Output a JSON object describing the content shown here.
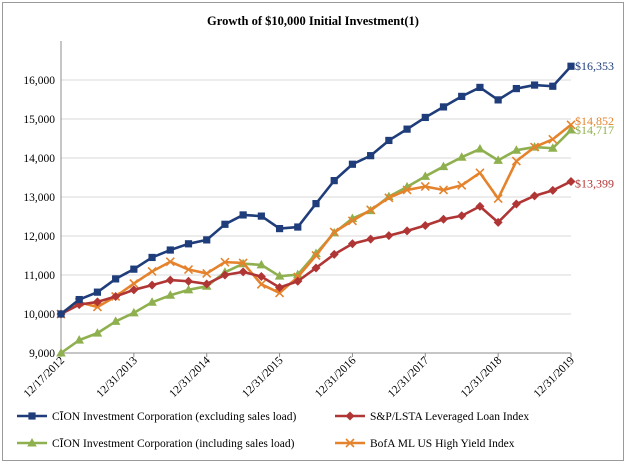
{
  "chart_data": {
    "type": "line",
    "title": "Growth of $10,000 Initial Investment(1)",
    "xlabel": "",
    "ylabel": "",
    "ylim": [
      9000,
      17000
    ],
    "y_ticks": [
      "9,000",
      "10,000",
      "11,000",
      "12,000",
      "13,000",
      "14,000",
      "15,000",
      "16,000"
    ],
    "x_ticks": [
      "12/17/2012",
      "12/31/2013",
      "12/31/2014",
      "12/31/2015",
      "12/31/2016",
      "12/31/2017",
      "12/31/2018",
      "12/31/2019"
    ],
    "grid": "horizontal",
    "legend_position": "bottom",
    "series": [
      {
        "name": "CĪON Investment Corporation (excluding sales load)",
        "color": "#1f3d7a",
        "marker": "square",
        "end_label": "$16,353",
        "values": [
          10000,
          10370,
          10560,
          10900,
          11150,
          11450,
          11640,
          11800,
          11900,
          12300,
          12540,
          12510,
          12190,
          12230,
          12830,
          13420,
          13840,
          14060,
          14450,
          14740,
          15040,
          15310,
          15580,
          15810,
          15490,
          15780,
          15870,
          15840,
          16353
        ]
      },
      {
        "name": "S&P/LSTA Leveraged Loan Index",
        "color": "#b03535",
        "marker": "diamond",
        "end_label": "$13,399",
        "values": [
          10000,
          10240,
          10310,
          10450,
          10620,
          10740,
          10870,
          10840,
          10770,
          11000,
          11080,
          10960,
          10680,
          10840,
          11180,
          11530,
          11800,
          11920,
          12010,
          12130,
          12270,
          12430,
          12520,
          12760,
          12350,
          12820,
          13030,
          13170,
          13399
        ]
      },
      {
        "name": "CĪON Investment Corporation (including sales load)",
        "color": "#8fb04f",
        "marker": "triangle",
        "end_label": "$14,717",
        "values": [
          9000,
          9330,
          9510,
          9810,
          10030,
          10300,
          10480,
          10620,
          10710,
          11070,
          11290,
          11260,
          10970,
          11010,
          11550,
          12080,
          12450,
          12650,
          13010,
          13260,
          13530,
          13780,
          14020,
          14230,
          13940,
          14200,
          14280,
          14250,
          14717
        ]
      },
      {
        "name": "BofA ML US High Yield Index",
        "color": "#e5832d",
        "marker": "x",
        "end_label": "$14,852",
        "values": [
          10000,
          10300,
          10180,
          10450,
          10780,
          11090,
          11340,
          11140,
          11040,
          11330,
          11310,
          10760,
          10540,
          10950,
          11500,
          12100,
          12390,
          12670,
          12980,
          13180,
          13270,
          13180,
          13300,
          13620,
          12960,
          13920,
          14280,
          14480,
          14852
        ]
      }
    ]
  }
}
